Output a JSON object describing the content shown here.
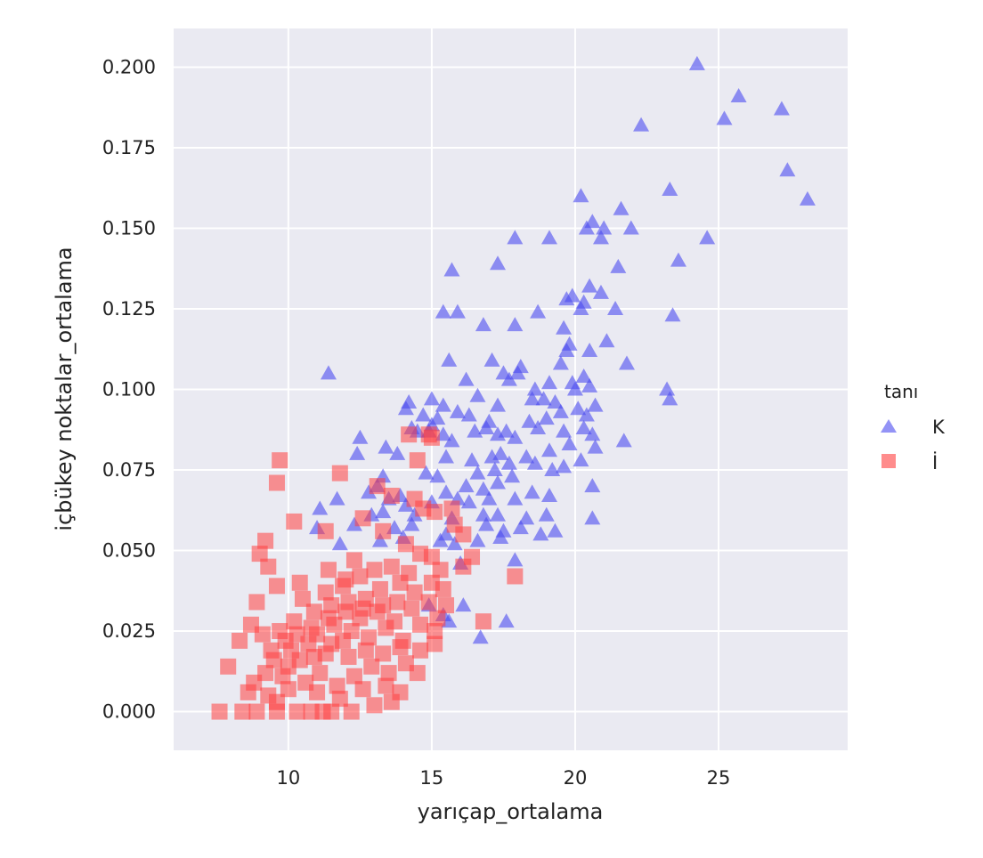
{
  "chart_data": {
    "type": "scatter",
    "title": "",
    "xlabel": "yarıçap_ortalama",
    "ylabel": "içbükey noktalar_ortalama",
    "xlim": [
      6.0,
      29.5
    ],
    "ylim": [
      -0.012,
      0.212
    ],
    "xticks": [
      10,
      15,
      20,
      25
    ],
    "yticks": [
      0.0,
      0.025,
      0.05,
      0.075,
      0.1,
      0.125,
      0.15,
      0.175,
      0.2
    ],
    "xtick_labels": [
      "10",
      "15",
      "20",
      "25"
    ],
    "ytick_labels": [
      "0.000",
      "0.025",
      "0.050",
      "0.075",
      "0.100",
      "0.125",
      "0.150",
      "0.175",
      "0.200"
    ],
    "grid": true,
    "background": "#eaeaf2",
    "legend": {
      "title": "tanı",
      "placement": "right",
      "entries": [
        {
          "label": "K",
          "marker": "triangle",
          "color": "#4b4bf0"
        },
        {
          "label": "İ",
          "marker": "square",
          "color": "#ff4040"
        }
      ]
    },
    "series": [
      {
        "name": "K",
        "marker": "triangle",
        "color": "#4b4bf0",
        "points": [
          [
            24.25,
            0.201
          ],
          [
            25.7,
            0.191
          ],
          [
            25.2,
            0.184
          ],
          [
            27.2,
            0.187
          ],
          [
            22.3,
            0.182
          ],
          [
            27.4,
            0.168
          ],
          [
            28.1,
            0.159
          ],
          [
            23.3,
            0.162
          ],
          [
            20.2,
            0.16
          ],
          [
            21.6,
            0.156
          ],
          [
            20.4,
            0.15
          ],
          [
            20.6,
            0.152
          ],
          [
            21.0,
            0.15
          ],
          [
            20.9,
            0.147
          ],
          [
            21.95,
            0.15
          ],
          [
            24.6,
            0.147
          ],
          [
            17.9,
            0.147
          ],
          [
            19.1,
            0.147
          ],
          [
            23.6,
            0.14
          ],
          [
            21.5,
            0.138
          ],
          [
            17.3,
            0.139
          ],
          [
            15.7,
            0.137
          ],
          [
            20.5,
            0.132
          ],
          [
            20.9,
            0.13
          ],
          [
            19.9,
            0.129
          ],
          [
            19.7,
            0.128
          ],
          [
            20.2,
            0.125
          ],
          [
            20.3,
            0.127
          ],
          [
            15.4,
            0.124
          ],
          [
            15.9,
            0.124
          ],
          [
            18.7,
            0.124
          ],
          [
            21.4,
            0.125
          ],
          [
            23.4,
            0.123
          ],
          [
            19.6,
            0.119
          ],
          [
            16.8,
            0.12
          ],
          [
            17.9,
            0.12
          ],
          [
            21.1,
            0.115
          ],
          [
            19.7,
            0.112
          ],
          [
            19.8,
            0.114
          ],
          [
            20.5,
            0.112
          ],
          [
            15.6,
            0.109
          ],
          [
            17.1,
            0.109
          ],
          [
            18.1,
            0.107
          ],
          [
            19.5,
            0.108
          ],
          [
            21.8,
            0.108
          ],
          [
            11.4,
            0.105
          ],
          [
            17.5,
            0.105
          ],
          [
            17.7,
            0.103
          ],
          [
            18.0,
            0.105
          ],
          [
            20.3,
            0.104
          ],
          [
            16.2,
            0.103
          ],
          [
            19.1,
            0.102
          ],
          [
            19.9,
            0.102
          ],
          [
            20.5,
            0.101
          ],
          [
            18.6,
            0.1
          ],
          [
            20.0,
            0.1
          ],
          [
            23.2,
            0.1
          ],
          [
            23.3,
            0.097
          ],
          [
            15.0,
            0.097
          ],
          [
            14.2,
            0.096
          ],
          [
            16.6,
            0.098
          ],
          [
            15.4,
            0.095
          ],
          [
            17.3,
            0.095
          ],
          [
            18.5,
            0.097
          ],
          [
            18.9,
            0.097
          ],
          [
            19.3,
            0.096
          ],
          [
            20.1,
            0.094
          ],
          [
            20.7,
            0.095
          ],
          [
            19.5,
            0.093
          ],
          [
            20.4,
            0.092
          ],
          [
            14.1,
            0.094
          ],
          [
            15.9,
            0.093
          ],
          [
            14.7,
            0.092
          ],
          [
            15.2,
            0.091
          ],
          [
            16.3,
            0.092
          ],
          [
            17.0,
            0.09
          ],
          [
            18.4,
            0.09
          ],
          [
            19.0,
            0.091
          ],
          [
            16.9,
            0.088
          ],
          [
            17.6,
            0.087
          ],
          [
            18.7,
            0.088
          ],
          [
            19.6,
            0.087
          ],
          [
            20.3,
            0.088
          ],
          [
            20.6,
            0.086
          ],
          [
            17.3,
            0.086
          ],
          [
            17.9,
            0.085
          ],
          [
            15.0,
            0.089
          ],
          [
            14.9,
            0.087
          ],
          [
            15.4,
            0.086
          ],
          [
            15.7,
            0.084
          ],
          [
            14.5,
            0.087
          ],
          [
            16.5,
            0.087
          ],
          [
            12.5,
            0.085
          ],
          [
            14.3,
            0.088
          ],
          [
            13.4,
            0.082
          ],
          [
            12.4,
            0.08
          ],
          [
            13.8,
            0.08
          ],
          [
            15.5,
            0.079
          ],
          [
            16.4,
            0.078
          ],
          [
            17.1,
            0.079
          ],
          [
            17.4,
            0.08
          ],
          [
            17.7,
            0.077
          ],
          [
            18.3,
            0.079
          ],
          [
            18.6,
            0.077
          ],
          [
            19.1,
            0.081
          ],
          [
            19.8,
            0.083
          ],
          [
            20.2,
            0.078
          ],
          [
            20.7,
            0.082
          ],
          [
            21.7,
            0.084
          ],
          [
            17.2,
            0.075
          ],
          [
            17.8,
            0.073
          ],
          [
            19.2,
            0.075
          ],
          [
            19.6,
            0.076
          ],
          [
            13.3,
            0.073
          ],
          [
            14.8,
            0.074
          ],
          [
            15.2,
            0.073
          ],
          [
            16.6,
            0.074
          ],
          [
            16.2,
            0.07
          ],
          [
            17.3,
            0.071
          ],
          [
            20.6,
            0.07
          ],
          [
            12.8,
            0.068
          ],
          [
            13.1,
            0.07
          ],
          [
            15.5,
            0.068
          ],
          [
            16.8,
            0.069
          ],
          [
            18.5,
            0.068
          ],
          [
            19.1,
            0.067
          ],
          [
            11.7,
            0.066
          ],
          [
            13.5,
            0.066
          ],
          [
            13.9,
            0.067
          ],
          [
            14.1,
            0.064
          ],
          [
            15.0,
            0.065
          ],
          [
            15.9,
            0.066
          ],
          [
            16.3,
            0.065
          ],
          [
            17.0,
            0.066
          ],
          [
            17.9,
            0.066
          ],
          [
            11.1,
            0.063
          ],
          [
            12.9,
            0.061
          ],
          [
            13.3,
            0.062
          ],
          [
            14.4,
            0.061
          ],
          [
            15.7,
            0.06
          ],
          [
            16.8,
            0.061
          ],
          [
            17.3,
            0.061
          ],
          [
            18.3,
            0.06
          ],
          [
            19.0,
            0.061
          ],
          [
            20.6,
            0.06
          ],
          [
            11.0,
            0.057
          ],
          [
            12.3,
            0.058
          ],
          [
            13.7,
            0.057
          ],
          [
            14.3,
            0.058
          ],
          [
            15.5,
            0.055
          ],
          [
            16.9,
            0.058
          ],
          [
            17.5,
            0.056
          ],
          [
            18.1,
            0.057
          ],
          [
            18.8,
            0.055
          ],
          [
            19.3,
            0.056
          ],
          [
            11.8,
            0.052
          ],
          [
            13.2,
            0.053
          ],
          [
            14.0,
            0.054
          ],
          [
            15.3,
            0.053
          ],
          [
            15.8,
            0.052
          ],
          [
            16.6,
            0.053
          ],
          [
            17.4,
            0.054
          ],
          [
            17.9,
            0.047
          ],
          [
            16.0,
            0.046
          ],
          [
            14.9,
            0.033
          ],
          [
            15.4,
            0.03
          ],
          [
            15.6,
            0.028
          ],
          [
            16.1,
            0.033
          ],
          [
            16.7,
            0.023
          ],
          [
            17.6,
            0.028
          ]
        ]
      },
      {
        "name": "İ",
        "marker": "square",
        "color": "#ff4040",
        "points": [
          [
            9.7,
            0.078
          ],
          [
            9.6,
            0.071
          ],
          [
            11.8,
            0.074
          ],
          [
            9.2,
            0.053
          ],
          [
            9.0,
            0.049
          ],
          [
            9.3,
            0.045
          ],
          [
            9.6,
            0.039
          ],
          [
            10.2,
            0.059
          ],
          [
            11.3,
            0.056
          ],
          [
            12.6,
            0.06
          ],
          [
            14.5,
            0.078
          ],
          [
            14.2,
            0.086
          ],
          [
            14.9,
            0.086
          ],
          [
            15.0,
            0.085
          ],
          [
            13.1,
            0.07
          ],
          [
            13.6,
            0.067
          ],
          [
            14.4,
            0.066
          ],
          [
            14.7,
            0.063
          ],
          [
            15.1,
            0.062
          ],
          [
            15.7,
            0.063
          ],
          [
            15.8,
            0.058
          ],
          [
            16.1,
            0.055
          ],
          [
            16.4,
            0.048
          ],
          [
            16.1,
            0.045
          ],
          [
            17.9,
            0.042
          ],
          [
            16.8,
            0.028
          ],
          [
            13.3,
            0.056
          ],
          [
            14.1,
            0.052
          ],
          [
            14.6,
            0.049
          ],
          [
            15.0,
            0.048
          ],
          [
            13.6,
            0.045
          ],
          [
            12.3,
            0.047
          ],
          [
            11.4,
            0.044
          ],
          [
            12.0,
            0.041
          ],
          [
            10.4,
            0.04
          ],
          [
            8.9,
            0.034
          ],
          [
            8.3,
            0.022
          ],
          [
            7.9,
            0.014
          ],
          [
            7.6,
            0.0
          ],
          [
            8.4,
            0.0
          ],
          [
            8.9,
            0.0
          ],
          [
            9.6,
            0.0
          ],
          [
            9.3,
            0.005
          ],
          [
            10.3,
            0.0
          ],
          [
            10.8,
            0.0
          ],
          [
            11.2,
            0.0
          ],
          [
            11.5,
            0.0
          ],
          [
            12.2,
            0.0
          ],
          [
            13.0,
            0.002
          ],
          [
            13.6,
            0.003
          ],
          [
            13.9,
            0.006
          ],
          [
            8.6,
            0.006
          ],
          [
            8.8,
            0.009
          ],
          [
            9.2,
            0.012
          ],
          [
            9.5,
            0.016
          ],
          [
            9.8,
            0.011
          ],
          [
            10.1,
            0.019
          ],
          [
            10.4,
            0.016
          ],
          [
            10.7,
            0.021
          ],
          [
            11.0,
            0.024
          ],
          [
            11.3,
            0.018
          ],
          [
            11.6,
            0.027
          ],
          [
            11.9,
            0.022
          ],
          [
            12.2,
            0.025
          ],
          [
            12.5,
            0.029
          ],
          [
            12.8,
            0.023
          ],
          [
            13.1,
            0.031
          ],
          [
            13.4,
            0.026
          ],
          [
            13.7,
            0.028
          ],
          [
            14.0,
            0.022
          ],
          [
            14.3,
            0.032
          ],
          [
            14.6,
            0.027
          ],
          [
            14.9,
            0.034
          ],
          [
            15.2,
            0.029
          ],
          [
            15.4,
            0.038
          ],
          [
            15.0,
            0.04
          ],
          [
            14.4,
            0.037
          ],
          [
            13.9,
            0.04
          ],
          [
            13.2,
            0.038
          ],
          [
            12.7,
            0.035
          ],
          [
            12.1,
            0.034
          ],
          [
            11.5,
            0.033
          ],
          [
            10.9,
            0.031
          ],
          [
            10.2,
            0.028
          ],
          [
            9.7,
            0.025
          ],
          [
            9.1,
            0.024
          ],
          [
            8.7,
            0.027
          ],
          [
            9.4,
            0.019
          ],
          [
            10.0,
            0.014
          ],
          [
            10.6,
            0.009
          ],
          [
            11.1,
            0.012
          ],
          [
            11.7,
            0.008
          ],
          [
            12.3,
            0.011
          ],
          [
            12.9,
            0.014
          ],
          [
            13.5,
            0.012
          ],
          [
            14.1,
            0.015
          ],
          [
            14.6,
            0.019
          ],
          [
            15.1,
            0.021
          ],
          [
            11.3,
            0.037
          ],
          [
            11.9,
            0.039
          ],
          [
            12.5,
            0.042
          ],
          [
            13.0,
            0.044
          ],
          [
            10.5,
            0.035
          ],
          [
            10.8,
            0.026
          ],
          [
            11.4,
            0.029
          ],
          [
            12.0,
            0.031
          ],
          [
            12.6,
            0.032
          ],
          [
            13.3,
            0.033
          ],
          [
            13.8,
            0.034
          ],
          [
            14.2,
            0.043
          ],
          [
            15.3,
            0.044
          ],
          [
            15.5,
            0.033
          ],
          [
            15.1,
            0.025
          ],
          [
            9.9,
            0.022
          ],
          [
            10.3,
            0.024
          ],
          [
            10.9,
            0.017
          ],
          [
            11.5,
            0.021
          ],
          [
            12.1,
            0.017
          ],
          [
            12.7,
            0.019
          ],
          [
            13.3,
            0.018
          ],
          [
            13.9,
            0.02
          ],
          [
            14.5,
            0.012
          ],
          [
            11.0,
            0.006
          ],
          [
            11.8,
            0.004
          ],
          [
            12.6,
            0.007
          ],
          [
            13.4,
            0.008
          ],
          [
            9.6,
            0.003
          ],
          [
            10.0,
            0.007
          ]
        ]
      }
    ]
  }
}
